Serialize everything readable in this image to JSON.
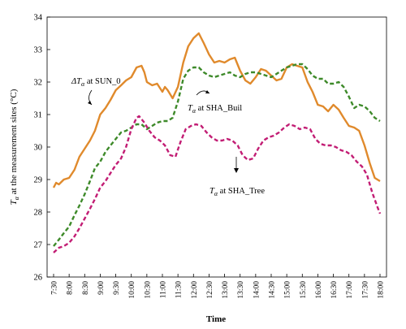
{
  "chart_data": {
    "type": "line",
    "xlabel": "Time",
    "ylabel_prefix": "T",
    "ylabel_sub": "α",
    "ylabel_rest": " at the measurement sites (°C)",
    "ylim": [
      26,
      34
    ],
    "yticks": [
      26,
      27,
      28,
      29,
      30,
      31,
      32,
      33,
      34
    ],
    "xticks": [
      "7:30",
      "8:00",
      "8:30",
      "9:00",
      "9:30",
      "10:00",
      "10:30",
      "11:00",
      "11:30",
      "12:00",
      "12:30",
      "13:00",
      "13:30",
      "14:00",
      "14:30",
      "15:00",
      "15:30",
      "16:00",
      "16:30",
      "17:00",
      "17:30",
      "18:00"
    ],
    "x_start_hours": 7.5,
    "series": [
      {
        "name": "ΔTα at SUN_0",
        "color": "#e08a2c",
        "dash": "solid",
        "points": [
          [
            7.5,
            28.75
          ],
          [
            7.58,
            28.9
          ],
          [
            7.67,
            28.85
          ],
          [
            7.83,
            29.0
          ],
          [
            8.0,
            29.05
          ],
          [
            8.17,
            29.3
          ],
          [
            8.33,
            29.7
          ],
          [
            8.5,
            29.95
          ],
          [
            8.67,
            30.2
          ],
          [
            8.83,
            30.5
          ],
          [
            9.0,
            31.0
          ],
          [
            9.17,
            31.2
          ],
          [
            9.33,
            31.45
          ],
          [
            9.5,
            31.75
          ],
          [
            9.67,
            31.9
          ],
          [
            9.83,
            32.05
          ],
          [
            10.0,
            32.15
          ],
          [
            10.17,
            32.45
          ],
          [
            10.33,
            32.5
          ],
          [
            10.42,
            32.3
          ],
          [
            10.5,
            32.0
          ],
          [
            10.67,
            31.9
          ],
          [
            10.83,
            31.95
          ],
          [
            11.0,
            31.7
          ],
          [
            11.08,
            31.85
          ],
          [
            11.17,
            31.75
          ],
          [
            11.33,
            31.5
          ],
          [
            11.5,
            31.85
          ],
          [
            11.67,
            32.6
          ],
          [
            11.83,
            33.1
          ],
          [
            12.0,
            33.35
          ],
          [
            12.17,
            33.5
          ],
          [
            12.33,
            33.2
          ],
          [
            12.5,
            32.85
          ],
          [
            12.67,
            32.6
          ],
          [
            12.83,
            32.65
          ],
          [
            13.0,
            32.6
          ],
          [
            13.17,
            32.7
          ],
          [
            13.33,
            32.75
          ],
          [
            13.5,
            32.35
          ],
          [
            13.67,
            32.05
          ],
          [
            13.83,
            31.95
          ],
          [
            14.0,
            32.15
          ],
          [
            14.17,
            32.4
          ],
          [
            14.33,
            32.35
          ],
          [
            14.5,
            32.2
          ],
          [
            14.67,
            32.05
          ],
          [
            14.83,
            32.1
          ],
          [
            15.0,
            32.45
          ],
          [
            15.17,
            32.55
          ],
          [
            15.33,
            32.5
          ],
          [
            15.5,
            32.45
          ],
          [
            15.67,
            32.0
          ],
          [
            15.83,
            31.7
          ],
          [
            16.0,
            31.3
          ],
          [
            16.17,
            31.25
          ],
          [
            16.33,
            31.1
          ],
          [
            16.5,
            31.3
          ],
          [
            16.67,
            31.15
          ],
          [
            16.83,
            30.9
          ],
          [
            17.0,
            30.65
          ],
          [
            17.17,
            30.6
          ],
          [
            17.33,
            30.5
          ],
          [
            17.5,
            30.05
          ],
          [
            17.67,
            29.5
          ],
          [
            17.83,
            29.05
          ],
          [
            18.0,
            28.95
          ]
        ]
      },
      {
        "name": "Tα at SHA_Buil",
        "color": "#3e8a2a",
        "dash": "dashed",
        "points": [
          [
            7.5,
            26.95
          ],
          [
            7.67,
            27.15
          ],
          [
            7.83,
            27.35
          ],
          [
            8.0,
            27.55
          ],
          [
            8.17,
            27.9
          ],
          [
            8.33,
            28.2
          ],
          [
            8.5,
            28.55
          ],
          [
            8.67,
            28.95
          ],
          [
            8.83,
            29.35
          ],
          [
            9.0,
            29.55
          ],
          [
            9.17,
            29.85
          ],
          [
            9.33,
            30.05
          ],
          [
            9.5,
            30.25
          ],
          [
            9.67,
            30.45
          ],
          [
            9.83,
            30.5
          ],
          [
            10.0,
            30.6
          ],
          [
            10.17,
            30.7
          ],
          [
            10.33,
            30.7
          ],
          [
            10.5,
            30.55
          ],
          [
            10.67,
            30.65
          ],
          [
            10.83,
            30.75
          ],
          [
            11.0,
            30.8
          ],
          [
            11.17,
            30.8
          ],
          [
            11.33,
            30.9
          ],
          [
            11.5,
            31.4
          ],
          [
            11.67,
            32.1
          ],
          [
            11.83,
            32.35
          ],
          [
            12.0,
            32.45
          ],
          [
            12.17,
            32.45
          ],
          [
            12.33,
            32.3
          ],
          [
            12.5,
            32.2
          ],
          [
            12.67,
            32.15
          ],
          [
            12.83,
            32.2
          ],
          [
            13.0,
            32.25
          ],
          [
            13.17,
            32.3
          ],
          [
            13.33,
            32.2
          ],
          [
            13.5,
            32.15
          ],
          [
            13.67,
            32.25
          ],
          [
            13.83,
            32.3
          ],
          [
            14.0,
            32.3
          ],
          [
            14.17,
            32.25
          ],
          [
            14.33,
            32.2
          ],
          [
            14.5,
            32.15
          ],
          [
            14.67,
            32.25
          ],
          [
            14.83,
            32.35
          ],
          [
            15.0,
            32.45
          ],
          [
            15.17,
            32.5
          ],
          [
            15.33,
            32.55
          ],
          [
            15.5,
            32.55
          ],
          [
            15.67,
            32.4
          ],
          [
            15.83,
            32.2
          ],
          [
            16.0,
            32.1
          ],
          [
            16.17,
            32.1
          ],
          [
            16.33,
            31.95
          ],
          [
            16.5,
            31.95
          ],
          [
            16.67,
            32.0
          ],
          [
            16.83,
            31.85
          ],
          [
            17.0,
            31.55
          ],
          [
            17.17,
            31.2
          ],
          [
            17.33,
            31.3
          ],
          [
            17.5,
            31.25
          ],
          [
            17.67,
            31.1
          ],
          [
            17.83,
            30.9
          ],
          [
            18.0,
            30.8
          ]
        ]
      },
      {
        "name": "Tα at SHA_Tree",
        "color": "#c21d74",
        "dash": "dashed",
        "points": [
          [
            7.5,
            26.75
          ],
          [
            7.67,
            26.9
          ],
          [
            7.83,
            26.95
          ],
          [
            8.0,
            27.05
          ],
          [
            8.17,
            27.25
          ],
          [
            8.33,
            27.5
          ],
          [
            8.5,
            27.8
          ],
          [
            8.67,
            28.1
          ],
          [
            8.83,
            28.4
          ],
          [
            9.0,
            28.75
          ],
          [
            9.17,
            28.95
          ],
          [
            9.33,
            29.2
          ],
          [
            9.5,
            29.45
          ],
          [
            9.67,
            29.65
          ],
          [
            9.83,
            30.0
          ],
          [
            10.0,
            30.55
          ],
          [
            10.17,
            30.9
          ],
          [
            10.25,
            30.95
          ],
          [
            10.42,
            30.75
          ],
          [
            10.58,
            30.5
          ],
          [
            10.75,
            30.3
          ],
          [
            10.92,
            30.2
          ],
          [
            11.08,
            30.05
          ],
          [
            11.25,
            29.75
          ],
          [
            11.42,
            29.7
          ],
          [
            11.58,
            30.15
          ],
          [
            11.75,
            30.55
          ],
          [
            11.92,
            30.65
          ],
          [
            12.08,
            30.7
          ],
          [
            12.25,
            30.65
          ],
          [
            12.42,
            30.45
          ],
          [
            12.58,
            30.3
          ],
          [
            12.75,
            30.2
          ],
          [
            12.92,
            30.2
          ],
          [
            13.08,
            30.25
          ],
          [
            13.25,
            30.2
          ],
          [
            13.42,
            30.05
          ],
          [
            13.58,
            29.75
          ],
          [
            13.75,
            29.6
          ],
          [
            13.92,
            29.65
          ],
          [
            14.08,
            29.95
          ],
          [
            14.25,
            30.2
          ],
          [
            14.42,
            30.3
          ],
          [
            14.58,
            30.35
          ],
          [
            14.75,
            30.45
          ],
          [
            14.92,
            30.6
          ],
          [
            15.08,
            30.7
          ],
          [
            15.25,
            30.65
          ],
          [
            15.42,
            30.55
          ],
          [
            15.58,
            30.6
          ],
          [
            15.75,
            30.55
          ],
          [
            15.92,
            30.25
          ],
          [
            16.08,
            30.1
          ],
          [
            16.25,
            30.05
          ],
          [
            16.42,
            30.05
          ],
          [
            16.58,
            30.0
          ],
          [
            16.75,
            29.9
          ],
          [
            16.92,
            29.85
          ],
          [
            17.08,
            29.75
          ],
          [
            17.25,
            29.55
          ],
          [
            17.42,
            29.4
          ],
          [
            17.58,
            29.15
          ],
          [
            17.75,
            28.6
          ],
          [
            17.92,
            28.15
          ],
          [
            18.0,
            27.95
          ]
        ]
      }
    ],
    "annotations": [
      {
        "prefix": "ΔT",
        "sub": "α",
        "rest": " at SUN_0"
      },
      {
        "prefix": "T",
        "sub": "α",
        "rest": " at SHA_Buil"
      },
      {
        "prefix": "T",
        "sub": "α",
        "rest": " at SHA_Tree"
      }
    ]
  }
}
